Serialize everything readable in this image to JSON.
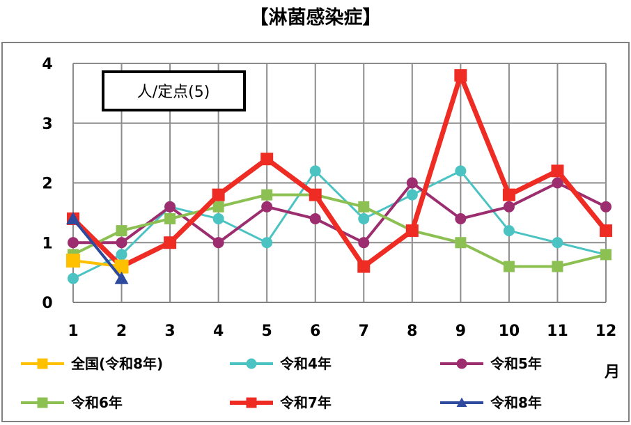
{
  "chart_data": {
    "type": "line",
    "title": "【淋菌感染症】",
    "unit_label": "人/定点(5)",
    "xlabel": "月",
    "ylabel": "",
    "categories": [
      "1",
      "2",
      "3",
      "4",
      "5",
      "6",
      "7",
      "8",
      "9",
      "10",
      "11",
      "12"
    ],
    "y_ticks": [
      "0",
      "1",
      "2",
      "3",
      "4"
    ],
    "ylim": [
      0,
      4
    ],
    "grid": true,
    "legend_position": "bottom",
    "series": [
      {
        "name": "全国(令和8年)",
        "color": "#FFC000",
        "marker": "square",
        "stroke": 4,
        "size": 20,
        "values": [
          0.7,
          0.6,
          null,
          null,
          null,
          null,
          null,
          null,
          null,
          null,
          null,
          null
        ]
      },
      {
        "name": "令和4年",
        "color": "#4BC3C3",
        "marker": "circle",
        "stroke": 3,
        "size": 16,
        "values": [
          0.4,
          0.8,
          1.6,
          1.4,
          1.0,
          2.2,
          1.4,
          1.8,
          2.2,
          1.2,
          1.0,
          0.8
        ]
      },
      {
        "name": "令和5年",
        "color": "#9C2D6E",
        "marker": "circle",
        "stroke": 4,
        "size": 16,
        "values": [
          1.0,
          1.0,
          1.6,
          1.0,
          1.6,
          1.4,
          1.0,
          2.0,
          1.4,
          1.6,
          2.0,
          1.6
        ]
      },
      {
        "name": "令和6年",
        "color": "#8DC052",
        "marker": "square",
        "stroke": 4,
        "size": 16,
        "values": [
          0.8,
          1.2,
          1.4,
          1.6,
          1.8,
          1.8,
          1.6,
          1.2,
          1.0,
          0.6,
          0.6,
          0.8
        ]
      },
      {
        "name": "令和7年",
        "color": "#EE2C24",
        "marker": "square",
        "stroke": 7,
        "size": 18,
        "values": [
          1.4,
          0.6,
          1.0,
          1.8,
          2.4,
          1.8,
          0.6,
          1.2,
          3.8,
          1.8,
          2.2,
          1.2
        ]
      },
      {
        "name": "令和8年",
        "color": "#2E4A9E",
        "marker": "triangle",
        "stroke": 4,
        "size": 20,
        "values": [
          1.4,
          0.4,
          null,
          null,
          null,
          null,
          null,
          null,
          null,
          null,
          null,
          null
        ]
      }
    ],
    "legend_order": [
      0,
      1,
      2,
      3,
      4,
      5
    ]
  }
}
